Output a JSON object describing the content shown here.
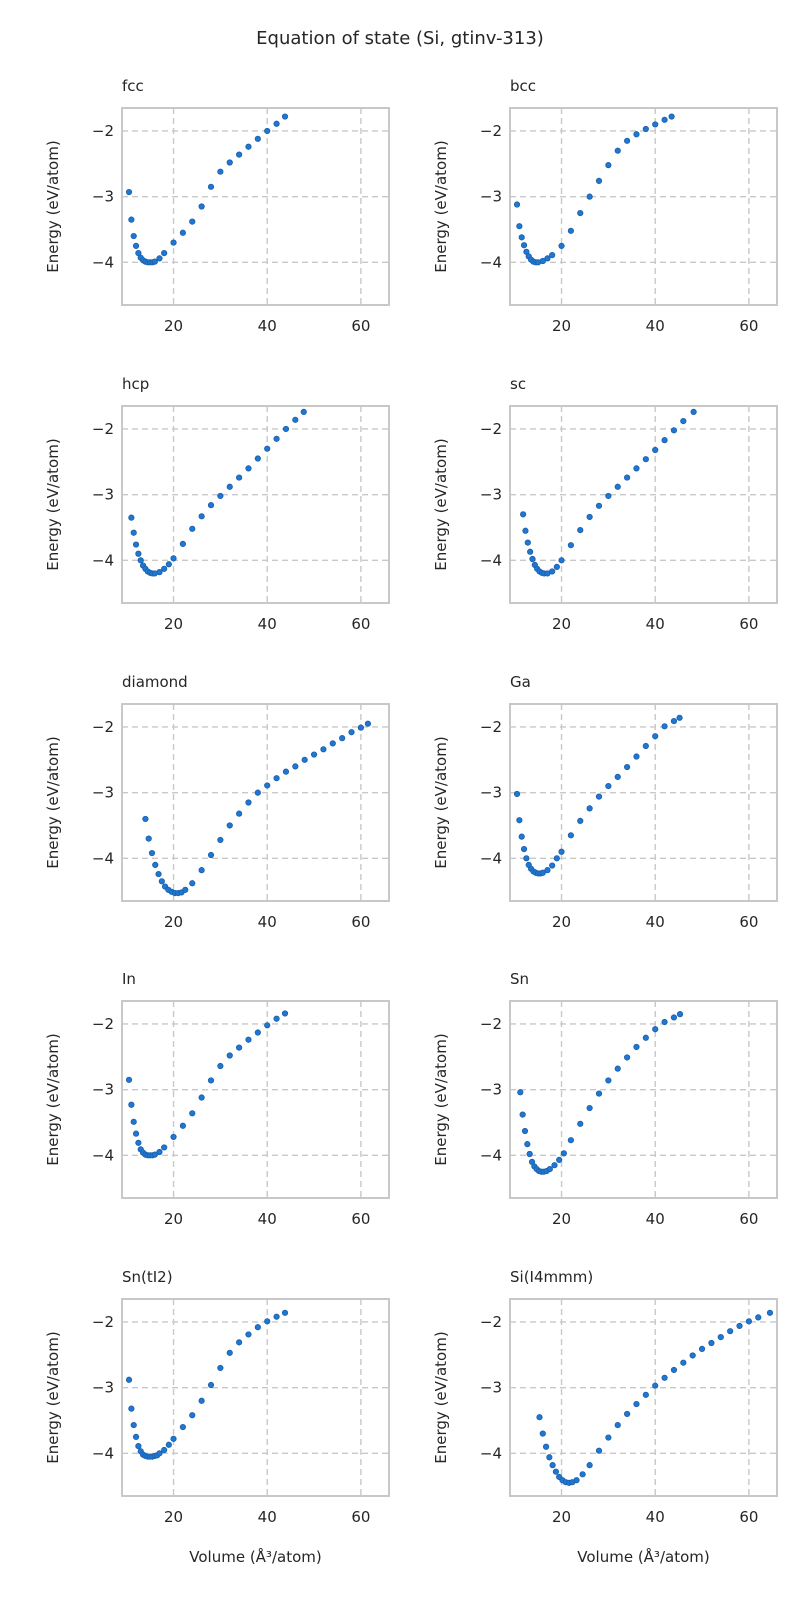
{
  "figure": {
    "title": "Equation of state (Si, gtinv-313)",
    "ylabel": "Energy (eV/atom)",
    "xlabel": "Volume (Å³/atom)",
    "marker_color": "#1f77d4",
    "marker_edge_color": "#1b5fa8",
    "grid_color": "#c8c8c8",
    "axes_edge_color": "#c8c8c8"
  },
  "chart_data": [
    {
      "type": "scatter",
      "title": "fcc",
      "xlim": [
        9,
        66
      ],
      "ylim": [
        -4.65,
        -1.65
      ],
      "xticks": [
        20,
        40,
        60
      ],
      "yticks": [
        -4,
        -3,
        -2
      ],
      "grid": true,
      "x": [
        10.5,
        11,
        11.5,
        12,
        12.5,
        13,
        13.5,
        14,
        14.5,
        15,
        15.5,
        16,
        17,
        18,
        20,
        22,
        24,
        26,
        28,
        30,
        32,
        34,
        36,
        38,
        40,
        42,
        43.8
      ],
      "y": [
        -2.93,
        -3.35,
        -3.6,
        -3.75,
        -3.86,
        -3.93,
        -3.97,
        -3.99,
        -4.0,
        -4.0,
        -4.0,
        -3.99,
        -3.94,
        -3.86,
        -3.7,
        -3.55,
        -3.38,
        -3.15,
        -2.85,
        -2.62,
        -2.48,
        -2.36,
        -2.24,
        -2.12,
        -2.0,
        -1.89,
        -1.78
      ]
    },
    {
      "type": "scatter",
      "title": "bcc",
      "xlim": [
        9,
        66
      ],
      "ylim": [
        -4.65,
        -1.65
      ],
      "xticks": [
        20,
        40,
        60
      ],
      "yticks": [
        -4,
        -3,
        -2
      ],
      "grid": true,
      "x": [
        10.5,
        11,
        11.5,
        12,
        12.5,
        13,
        13.5,
        14,
        14.5,
        15,
        16,
        17,
        18,
        20,
        22,
        24,
        26,
        28,
        30,
        32,
        34,
        36,
        38,
        40,
        42,
        43.5
      ],
      "y": [
        -3.12,
        -3.45,
        -3.62,
        -3.74,
        -3.84,
        -3.91,
        -3.96,
        -3.99,
        -4.0,
        -4.0,
        -3.98,
        -3.94,
        -3.89,
        -3.75,
        -3.52,
        -3.25,
        -3.0,
        -2.76,
        -2.52,
        -2.3,
        -2.15,
        -2.05,
        -1.97,
        -1.9,
        -1.83,
        -1.78
      ]
    },
    {
      "type": "scatter",
      "title": "hcp",
      "xlim": [
        9,
        66
      ],
      "ylim": [
        -4.65,
        -1.65
      ],
      "xticks": [
        20,
        40,
        60
      ],
      "yticks": [
        -4,
        -3,
        -2
      ],
      "grid": true,
      "x": [
        11,
        11.5,
        12,
        12.5,
        13,
        13.5,
        14,
        14.5,
        15,
        15.5,
        16,
        17,
        18,
        19,
        20,
        22,
        24,
        26,
        28,
        30,
        32,
        34,
        36,
        38,
        40,
        42,
        44,
        46,
        47.8
      ],
      "y": [
        -3.35,
        -3.58,
        -3.76,
        -3.9,
        -4.0,
        -4.08,
        -4.13,
        -4.17,
        -4.19,
        -4.2,
        -4.2,
        -4.18,
        -4.13,
        -4.06,
        -3.97,
        -3.75,
        -3.52,
        -3.33,
        -3.16,
        -3.02,
        -2.88,
        -2.74,
        -2.6,
        -2.45,
        -2.3,
        -2.15,
        -2.0,
        -1.86,
        -1.74
      ]
    },
    {
      "type": "scatter",
      "title": "sc",
      "xlim": [
        9,
        66
      ],
      "ylim": [
        -4.65,
        -1.65
      ],
      "xticks": [
        20,
        40,
        60
      ],
      "yticks": [
        -4,
        -3,
        -2
      ],
      "grid": true,
      "x": [
        11.8,
        12.3,
        12.8,
        13.3,
        13.8,
        14.3,
        14.8,
        15.3,
        15.8,
        16.3,
        17,
        18,
        19,
        20,
        22,
        24,
        26,
        28,
        30,
        32,
        34,
        36,
        38,
        40,
        42,
        44,
        46,
        48.2
      ],
      "y": [
        -3.3,
        -3.55,
        -3.73,
        -3.87,
        -3.98,
        -4.07,
        -4.13,
        -4.17,
        -4.19,
        -4.2,
        -4.2,
        -4.17,
        -4.1,
        -4.0,
        -3.77,
        -3.54,
        -3.34,
        -3.17,
        -3.02,
        -2.88,
        -2.74,
        -2.6,
        -2.46,
        -2.32,
        -2.17,
        -2.02,
        -1.88,
        -1.74
      ]
    },
    {
      "type": "scatter",
      "title": "diamond",
      "xlim": [
        9,
        66
      ],
      "ylim": [
        -4.65,
        -1.65
      ],
      "xticks": [
        20,
        40,
        60
      ],
      "yticks": [
        -4,
        -3,
        -2
      ],
      "grid": true,
      "x": [
        14,
        14.7,
        15.4,
        16.1,
        16.8,
        17.5,
        18.2,
        18.9,
        19.6,
        20.3,
        21,
        21.7,
        22.5,
        24,
        26,
        28,
        30,
        32,
        34,
        36,
        38,
        40,
        42,
        44,
        46,
        48,
        50,
        52,
        54,
        56,
        58,
        60,
        61.5
      ],
      "y": [
        -3.4,
        -3.7,
        -3.92,
        -4.1,
        -4.24,
        -4.35,
        -4.43,
        -4.48,
        -4.51,
        -4.53,
        -4.53,
        -4.52,
        -4.48,
        -4.38,
        -4.18,
        -3.95,
        -3.72,
        -3.5,
        -3.32,
        -3.15,
        -3.0,
        -2.89,
        -2.78,
        -2.68,
        -2.6,
        -2.5,
        -2.42,
        -2.34,
        -2.25,
        -2.17,
        -2.08,
        -2.01,
        -1.95
      ]
    },
    {
      "type": "scatter",
      "title": "Ga",
      "xlim": [
        9,
        66
      ],
      "ylim": [
        -4.65,
        -1.65
      ],
      "xticks": [
        20,
        40,
        60
      ],
      "yticks": [
        -4,
        -3,
        -2
      ],
      "grid": true,
      "x": [
        10.5,
        11,
        11.5,
        12,
        12.5,
        13,
        13.5,
        14,
        14.5,
        15,
        15.5,
        16,
        17,
        18,
        19,
        20,
        22,
        24,
        26,
        28,
        30,
        32,
        34,
        36,
        38,
        40,
        42,
        44,
        45.2
      ],
      "y": [
        -3.02,
        -3.42,
        -3.67,
        -3.86,
        -4.0,
        -4.1,
        -4.16,
        -4.2,
        -4.22,
        -4.23,
        -4.23,
        -4.22,
        -4.18,
        -4.11,
        -4.0,
        -3.9,
        -3.65,
        -3.43,
        -3.24,
        -3.06,
        -2.9,
        -2.76,
        -2.61,
        -2.45,
        -2.29,
        -2.14,
        -1.99,
        -1.91,
        -1.86
      ]
    },
    {
      "type": "scatter",
      "title": "In",
      "xlim": [
        9,
        66
      ],
      "ylim": [
        -4.65,
        -1.65
      ],
      "xticks": [
        20,
        40,
        60
      ],
      "yticks": [
        -4,
        -3,
        -2
      ],
      "grid": true,
      "x": [
        10.5,
        11,
        11.5,
        12,
        12.5,
        13,
        13.5,
        14,
        14.5,
        15,
        15.5,
        16,
        17,
        18,
        20,
        22,
        24,
        26,
        28,
        30,
        32,
        34,
        36,
        38,
        40,
        42,
        43.8
      ],
      "y": [
        -2.85,
        -3.23,
        -3.49,
        -3.67,
        -3.81,
        -3.91,
        -3.96,
        -3.99,
        -4.0,
        -4.0,
        -4.0,
        -3.99,
        -3.95,
        -3.88,
        -3.72,
        -3.55,
        -3.36,
        -3.12,
        -2.86,
        -2.64,
        -2.48,
        -2.36,
        -2.24,
        -2.13,
        -2.02,
        -1.92,
        -1.84
      ]
    },
    {
      "type": "scatter",
      "title": "Sn",
      "xlim": [
        9,
        66
      ],
      "ylim": [
        -4.65,
        -1.65
      ],
      "xticks": [
        20,
        40,
        60
      ],
      "yticks": [
        -4,
        -3,
        -2
      ],
      "grid": true,
      "x": [
        11.2,
        11.7,
        12.2,
        12.7,
        13.2,
        13.7,
        14.2,
        14.7,
        15.2,
        15.7,
        16.2,
        16.8,
        17.5,
        18.5,
        19.5,
        20.5,
        22,
        24,
        26,
        28,
        30,
        32,
        34,
        36,
        38,
        40,
        42,
        44,
        45.3
      ],
      "y": [
        -3.04,
        -3.38,
        -3.63,
        -3.83,
        -3.98,
        -4.1,
        -4.17,
        -4.21,
        -4.24,
        -4.25,
        -4.25,
        -4.24,
        -4.21,
        -4.15,
        -4.07,
        -3.97,
        -3.77,
        -3.52,
        -3.28,
        -3.06,
        -2.86,
        -2.68,
        -2.51,
        -2.35,
        -2.21,
        -2.08,
        -1.97,
        -1.9,
        -1.85
      ]
    },
    {
      "type": "scatter",
      "title": "Sn(tI2)",
      "xlim": [
        9,
        66
      ],
      "ylim": [
        -4.65,
        -1.65
      ],
      "xticks": [
        20,
        40,
        60
      ],
      "yticks": [
        -4,
        -3,
        -2
      ],
      "grid": true,
      "x": [
        10.5,
        11,
        11.5,
        12,
        12.5,
        13,
        13.5,
        14,
        14.5,
        15,
        15.5,
        16,
        16.5,
        17,
        18,
        19,
        20,
        22,
        24,
        26,
        28,
        30,
        32,
        34,
        36,
        38,
        40,
        42,
        43.8
      ],
      "y": [
        -2.88,
        -3.32,
        -3.57,
        -3.75,
        -3.89,
        -3.97,
        -4.02,
        -4.04,
        -4.05,
        -4.05,
        -4.05,
        -4.04,
        -4.03,
        -4.0,
        -3.95,
        -3.87,
        -3.78,
        -3.6,
        -3.42,
        -3.2,
        -2.96,
        -2.7,
        -2.47,
        -2.31,
        -2.19,
        -2.08,
        -1.99,
        -1.92,
        -1.86
      ]
    },
    {
      "type": "scatter",
      "title": "Si(I4mmm)",
      "xlim": [
        9,
        66
      ],
      "ylim": [
        -4.65,
        -1.65
      ],
      "xticks": [
        20,
        40,
        60
      ],
      "yticks": [
        -4,
        -3,
        -2
      ],
      "grid": true,
      "x": [
        15.3,
        16,
        16.7,
        17.4,
        18.1,
        18.8,
        19.5,
        20.2,
        20.9,
        21.6,
        22.3,
        23.2,
        24.5,
        26,
        28,
        30,
        32,
        34,
        36,
        38,
        40,
        42,
        44,
        46,
        48,
        50,
        52,
        54,
        56,
        58,
        60,
        62,
        64.5
      ],
      "y": [
        -3.45,
        -3.7,
        -3.9,
        -4.06,
        -4.18,
        -4.28,
        -4.36,
        -4.41,
        -4.44,
        -4.45,
        -4.44,
        -4.41,
        -4.32,
        -4.18,
        -3.96,
        -3.76,
        -3.57,
        -3.4,
        -3.25,
        -3.11,
        -2.97,
        -2.85,
        -2.73,
        -2.62,
        -2.51,
        -2.41,
        -2.32,
        -2.23,
        -2.14,
        -2.06,
        -1.99,
        -1.93,
        -1.86
      ]
    }
  ]
}
